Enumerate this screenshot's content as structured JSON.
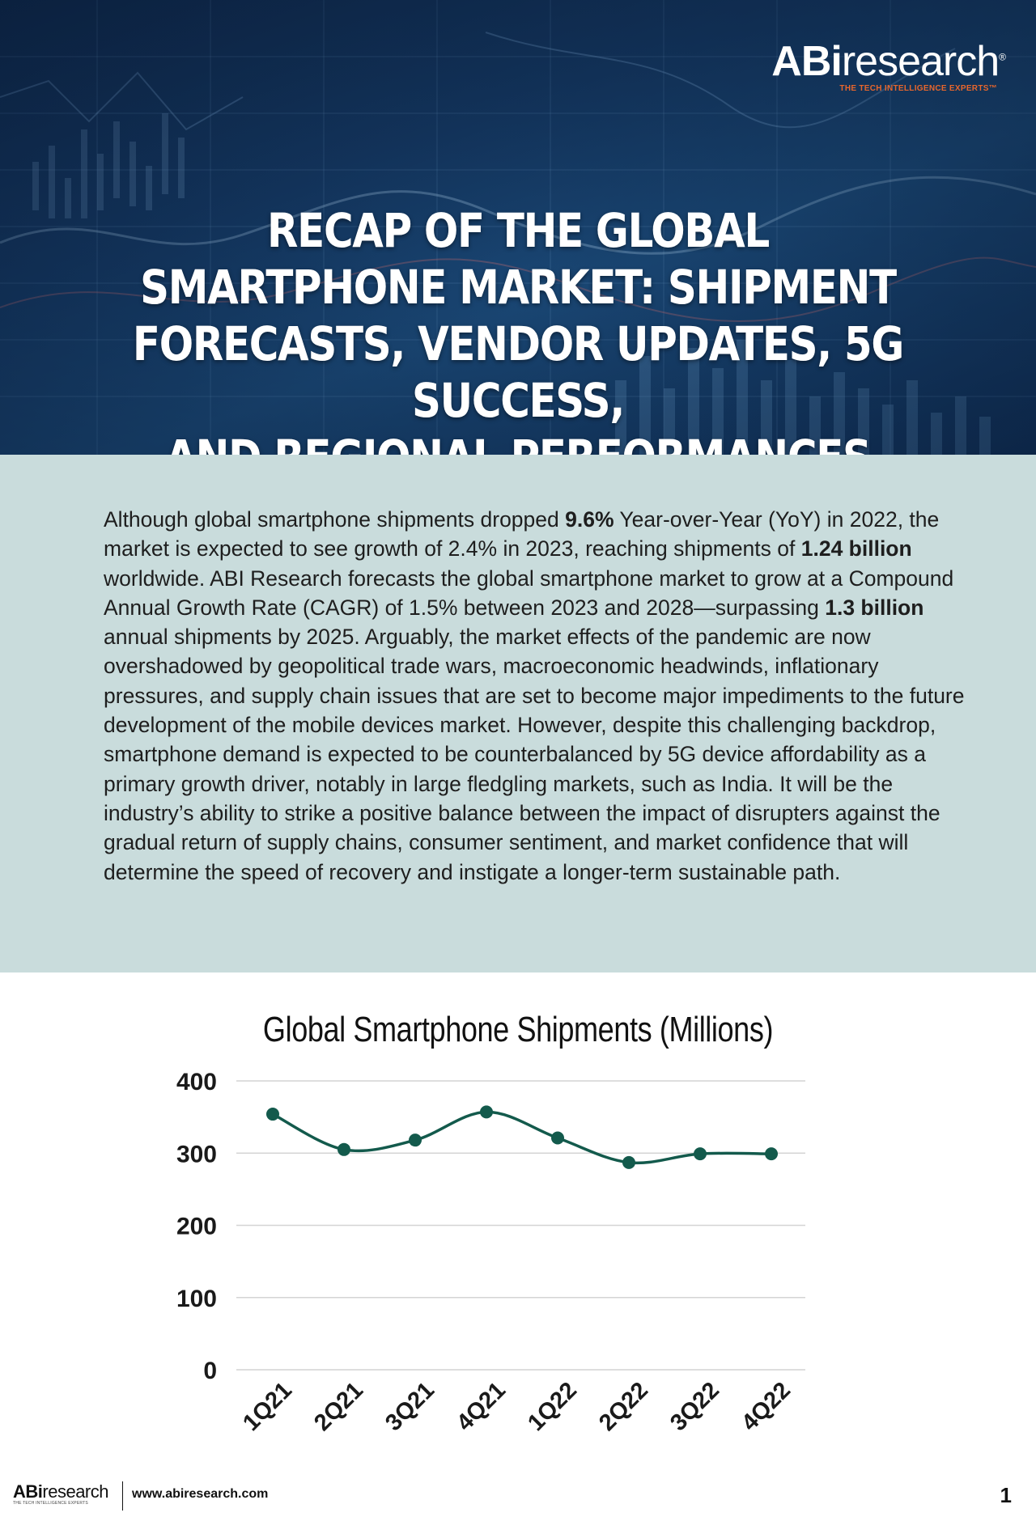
{
  "brand": {
    "logo_abi": "ABi",
    "logo_research": "research",
    "logo_registered": "®",
    "tagline": "THE TECH INTELLIGENCE EXPERTS™",
    "accent_color": "#e8662c"
  },
  "hero": {
    "title_lines": [
      "RECAP OF THE GLOBAL",
      "SMARTPHONE MARKET: SHIPMENT",
      "FORECASTS, VENDOR UPDATES, 5G SUCCESS,",
      "AND REGIONAL PERFORMANCES"
    ]
  },
  "intro": {
    "segments": [
      {
        "text": "Although global smartphone shipments dropped ",
        "bold": false
      },
      {
        "text": "9.6%",
        "bold": true
      },
      {
        "text": " Year-over-Year (YoY) in 2022, the market is expected to see growth of 2.4% in 2023, reaching shipments of ",
        "bold": false
      },
      {
        "text": "1.24 billion",
        "bold": true
      },
      {
        "text": " worldwide. ABI Research forecasts the global smartphone market to grow at a Compound Annual Growth Rate (CAGR) of 1.5% between 2023 and 2028—surpassing ",
        "bold": false
      },
      {
        "text": "1.3 billion",
        "bold": true
      },
      {
        "text": " annual shipments by 2025. Arguably, the market effects of the pandemic are now overshadowed by geopolitical trade wars, macroeconomic headwinds, inflationary pressures, and supply chain issues that are set to become major impediments to the future development of the mobile devices market. However, despite this challenging backdrop, smartphone demand is expected to be counterbalanced by 5G device affordability as a primary growth driver, notably in large fledgling markets, such as India. It will be the industry’s ability to strike a positive balance between the impact of disrupters against the gradual return of supply chains, consumer sentiment, and market confidence that will determine the speed of recovery and instigate a longer-term sustainable path.",
        "bold": false
      }
    ],
    "background_color": "#c9dcdc"
  },
  "chart_data": {
    "type": "line",
    "title": "Global Smartphone Shipments (Millions)",
    "categories": [
      "1Q21",
      "2Q21",
      "3Q21",
      "4Q21",
      "1Q22",
      "2Q22",
      "3Q22",
      "4Q22"
    ],
    "series": [
      {
        "values": [
          354,
          305,
          318,
          357,
          321,
          287,
          299,
          299
        ],
        "color": "#135a4c"
      }
    ],
    "yticks": [
      "400",
      "300",
      "200",
      "100",
      "0"
    ],
    "ylim": [
      0,
      400
    ],
    "grid": true,
    "legend": "none"
  },
  "footer": {
    "logo_abi": "ABi",
    "logo_research": "research",
    "tagline": "THE TECH INTELLIGENCE EXPERTS",
    "url": "www.abiresearch.com",
    "page_number": "1"
  }
}
